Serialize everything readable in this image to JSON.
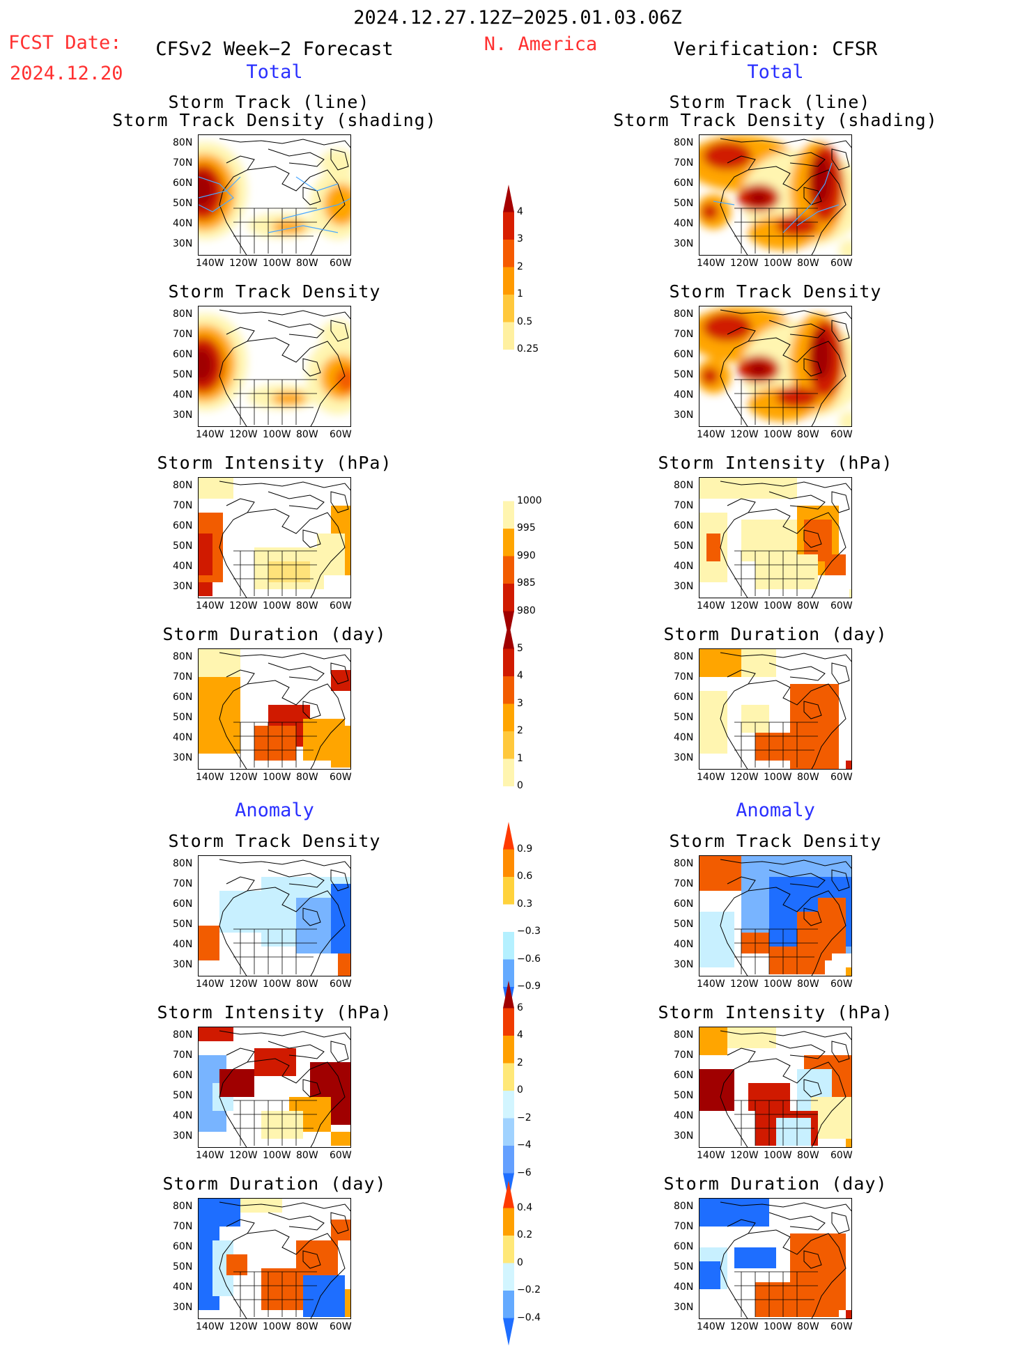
{
  "header": {
    "period": "2024.12.27.12Z−2025.01.03.06Z",
    "fcst_label": "FCST Date:",
    "fcst_date": "2024.12.20",
    "left_title": "CFSv2 Week−2 Forecast",
    "region": "N. America",
    "right_title": "Verification: CFSR",
    "total": "Total",
    "anomaly": "Anomaly"
  },
  "panel_titles": {
    "track_line": "Storm Track (line)",
    "track_shading": "Storm Track Density (shading)",
    "density": "Storm Track Density",
    "intensity": "Storm Intensity (hPa)",
    "duration": "Storm Duration (day)"
  },
  "axes": {
    "lat_ticks": [
      "80N",
      "70N",
      "60N",
      "50N",
      "40N",
      "30N"
    ],
    "lon_ticks": [
      "140W",
      "120W",
      "100W",
      "80W",
      "60W"
    ]
  },
  "colorbars": {
    "density_total": {
      "labels": [
        "4",
        "3",
        "2",
        "1",
        "0.5",
        "0.25"
      ],
      "colors": [
        "#a50000",
        "#d81e00",
        "#f55a00",
        "#ff9a00",
        "#ffc83c",
        "#fff0a0",
        "#ffffff"
      ]
    },
    "intensity_total": {
      "labels": [
        "1000",
        "995",
        "990",
        "985",
        "980"
      ],
      "colors": [
        "#ffffff",
        "#fff5b0",
        "#ffa500",
        "#f25c00",
        "#d01a00",
        "#a00000"
      ]
    },
    "duration_total": {
      "labels": [
        "5",
        "4",
        "3",
        "2",
        "1",
        "0"
      ],
      "colors": [
        "#a00000",
        "#d01a00",
        "#f25c00",
        "#ffa500",
        "#ffc83c",
        "#fff5b0",
        "#ffffff"
      ]
    },
    "density_anom": {
      "labels": [
        "0.9",
        "0.6",
        "0.3",
        "−0.3",
        "−0.6",
        "−0.9"
      ],
      "colors": [
        "#ff3a00",
        "#ff8c00",
        "#ffd23c",
        "#ffffff",
        "#b4f0ff",
        "#64aaff",
        "#1e6eff"
      ]
    },
    "intensity_anom": {
      "labels": [
        "6",
        "4",
        "2",
        "0",
        "−2",
        "−4",
        "−6"
      ],
      "colors": [
        "#a00000",
        "#f03c00",
        "#ffa000",
        "#ffe878",
        "#d2f5ff",
        "#a0d2ff",
        "#64a0ff",
        "#1e6eff"
      ]
    },
    "duration_anom": {
      "labels": [
        "0.4",
        "0.2",
        "0",
        "−0.2",
        "−0.4"
      ],
      "colors": [
        "#ff3a00",
        "#ffa000",
        "#ffe878",
        "#d2f5ff",
        "#64aaff",
        "#1e6eff"
      ]
    }
  }
}
